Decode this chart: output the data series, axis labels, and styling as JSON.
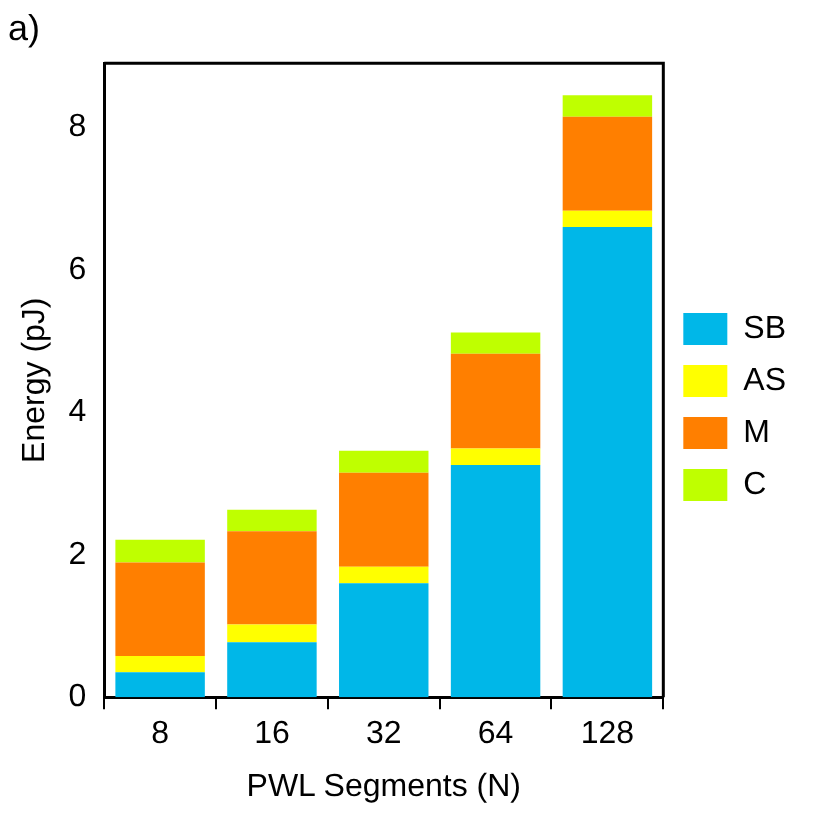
{
  "chart_data": {
    "type": "bar",
    "title": "a)",
    "xlabel": "PWL Segments (N)",
    "ylabel": "Energy (pJ)",
    "categories": [
      "8",
      "16",
      "32",
      "64",
      "128"
    ],
    "stacked": true,
    "series": [
      {
        "name": "SB",
        "color": "#00b7e8",
        "values": [
          0.35,
          0.77,
          1.6,
          3.26,
          6.6
        ]
      },
      {
        "name": "AS",
        "color": "#ffff00",
        "values": [
          0.23,
          0.25,
          0.23,
          0.23,
          0.23
        ]
      },
      {
        "name": "M",
        "color": "#ff7f00",
        "values": [
          1.31,
          1.31,
          1.32,
          1.33,
          1.32
        ]
      },
      {
        "name": "C",
        "color": "#bfff00",
        "values": [
          0.32,
          0.3,
          0.31,
          0.3,
          0.3
        ]
      }
    ],
    "ylim": [
      0,
      8.9
    ],
    "yticks": [
      0,
      2,
      4,
      6,
      8
    ],
    "grid": false,
    "legend": "right"
  }
}
